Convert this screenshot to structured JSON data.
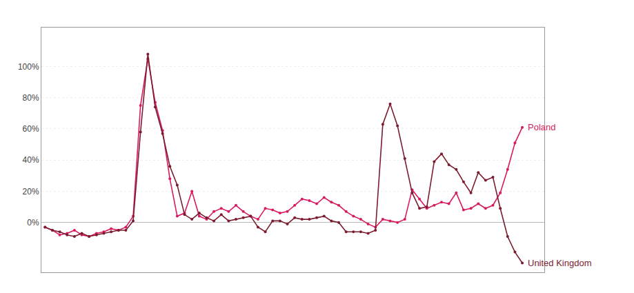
{
  "chart_data": {
    "type": "line",
    "x": [
      0,
      1,
      2,
      3,
      4,
      5,
      6,
      7,
      8,
      9,
      10,
      11,
      12,
      13,
      14,
      15,
      16,
      17,
      18,
      19,
      20,
      21,
      22,
      23,
      24,
      25,
      26,
      27,
      28,
      29,
      30,
      31,
      32,
      33,
      34,
      35,
      36,
      37,
      38,
      39,
      40,
      41,
      42,
      43,
      44,
      45,
      46,
      47,
      48,
      49,
      50,
      51,
      52,
      53,
      54,
      55,
      56,
      57,
      58,
      59,
      60,
      61,
      62,
      63,
      64,
      65
    ],
    "series": [
      {
        "name": "Poland",
        "color": "#d81b60",
        "values": [
          -3,
          -5,
          -8,
          -7,
          -5,
          -8,
          -9,
          -7,
          -6,
          -4,
          -5,
          -3,
          4,
          75,
          105,
          77,
          59,
          28,
          4,
          6,
          20,
          4,
          2,
          7,
          9,
          7,
          11,
          7,
          4,
          2,
          9,
          8,
          6,
          7,
          11,
          15,
          14,
          12,
          16,
          13,
          11,
          7,
          4,
          2,
          -1,
          -3,
          2,
          1,
          0,
          2,
          21,
          15,
          9,
          11,
          13,
          12,
          19,
          8,
          9,
          12,
          9,
          11,
          19,
          34,
          51,
          61
        ]
      },
      {
        "name": "United Kingdom",
        "color": "#7b1c2e",
        "values": [
          -3,
          -5,
          -6,
          -8,
          -9,
          -7,
          -9,
          -8,
          -7,
          -6,
          -5,
          -5,
          1,
          58,
          108,
          74,
          57,
          36,
          24,
          5,
          2,
          6,
          3,
          1,
          5,
          1,
          2,
          3,
          4,
          -3,
          -6,
          1,
          1,
          -1,
          3,
          2,
          2,
          3,
          4,
          1,
          0,
          -6,
          -6,
          -6,
          -7,
          -5,
          63,
          76,
          62,
          41,
          19,
          9,
          10,
          39,
          44,
          37,
          34,
          26,
          19,
          32,
          27,
          29,
          9,
          -9,
          -19,
          -26
        ]
      }
    ],
    "xlim": [
      -0.5,
      68
    ],
    "ylim": [
      -32,
      125
    ],
    "yticks": [
      {
        "value": 0,
        "label": "0%"
      },
      {
        "value": 20,
        "label": "20%"
      },
      {
        "value": 40,
        "label": "40%"
      },
      {
        "value": 60,
        "label": "60%"
      },
      {
        "value": 80,
        "label": "80%"
      },
      {
        "value": 100,
        "label": "100%"
      }
    ],
    "grid": true,
    "tick_labels": "y",
    "marker": "circle"
  }
}
